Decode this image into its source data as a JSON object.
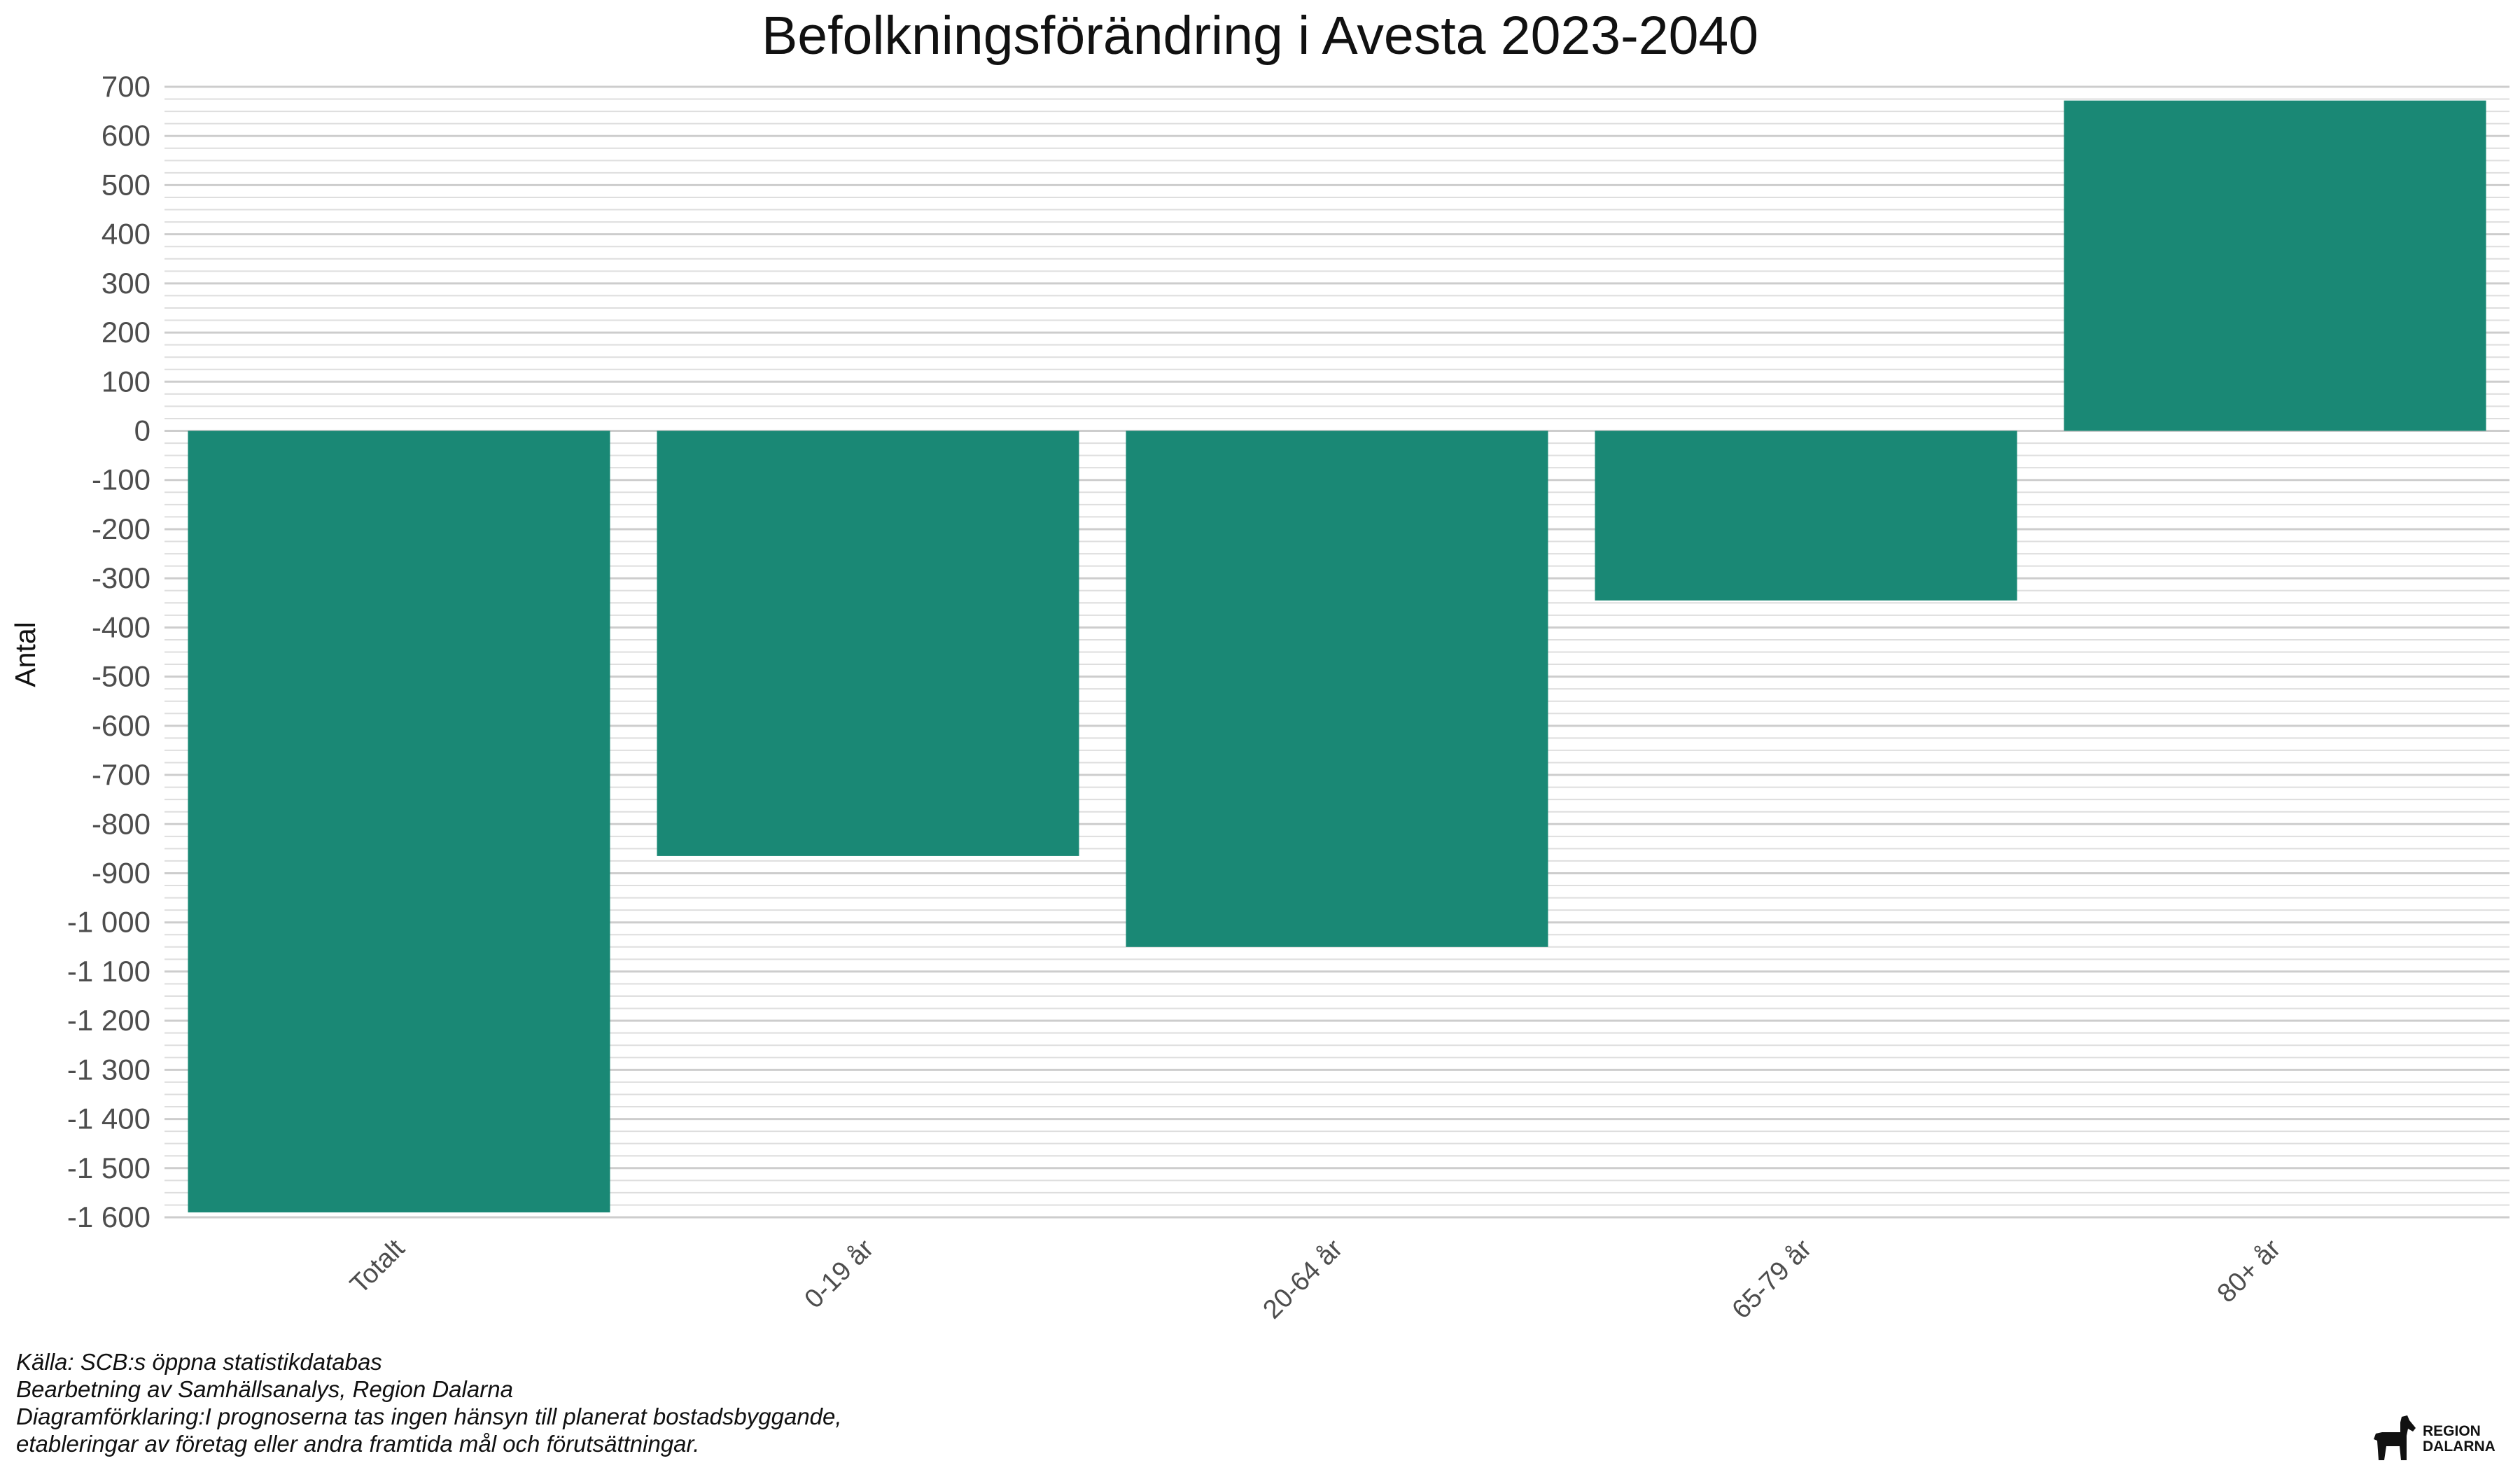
{
  "chart_data": {
    "type": "bar",
    "title": "Befolkningsförändring i Avesta 2023-2040",
    "xlabel": "",
    "ylabel": "Antal",
    "categories": [
      "Totalt",
      "0-19 år",
      "20-64 år",
      "65-79 år",
      "80+ år"
    ],
    "values": [
      -1590,
      -865,
      -1050,
      -345,
      672
    ],
    "ylim": [
      -1600,
      700
    ],
    "yticks": [
      700,
      600,
      500,
      400,
      300,
      200,
      100,
      0,
      -100,
      -200,
      -300,
      -400,
      -500,
      -600,
      -700,
      -800,
      -900,
      -1000,
      -1100,
      -1200,
      -1300,
      -1400,
      -1500,
      -1600
    ],
    "ytick_labels": [
      "700",
      "600",
      "500",
      "400",
      "300",
      "200",
      "100",
      "0",
      "-100",
      "-200",
      "-300",
      "-400",
      "-500",
      "-600",
      "-700",
      "-800",
      "-900",
      "-1 000",
      "-1 100",
      "-1 200",
      "-1 300",
      "-1 400",
      "-1 500",
      "-1 600"
    ],
    "grid": true,
    "legend": "none",
    "bar_color": "#1a8875"
  },
  "caption": {
    "source": "Källa: SCB:s öppna statistikdatabas",
    "processing": "Bearbetning av Samhällsanalys, Region Dalarna",
    "explanation_1": "Diagramförklaring:I prognoserna tas ingen hänsyn till planerat bostadsbyggande,",
    "explanation_2": "etableringar av företag eller andra framtida mål och förutsättningar."
  },
  "logo": {
    "line1": "REGION",
    "line2": "DALARNA",
    "icon": "dala-horse-icon"
  }
}
